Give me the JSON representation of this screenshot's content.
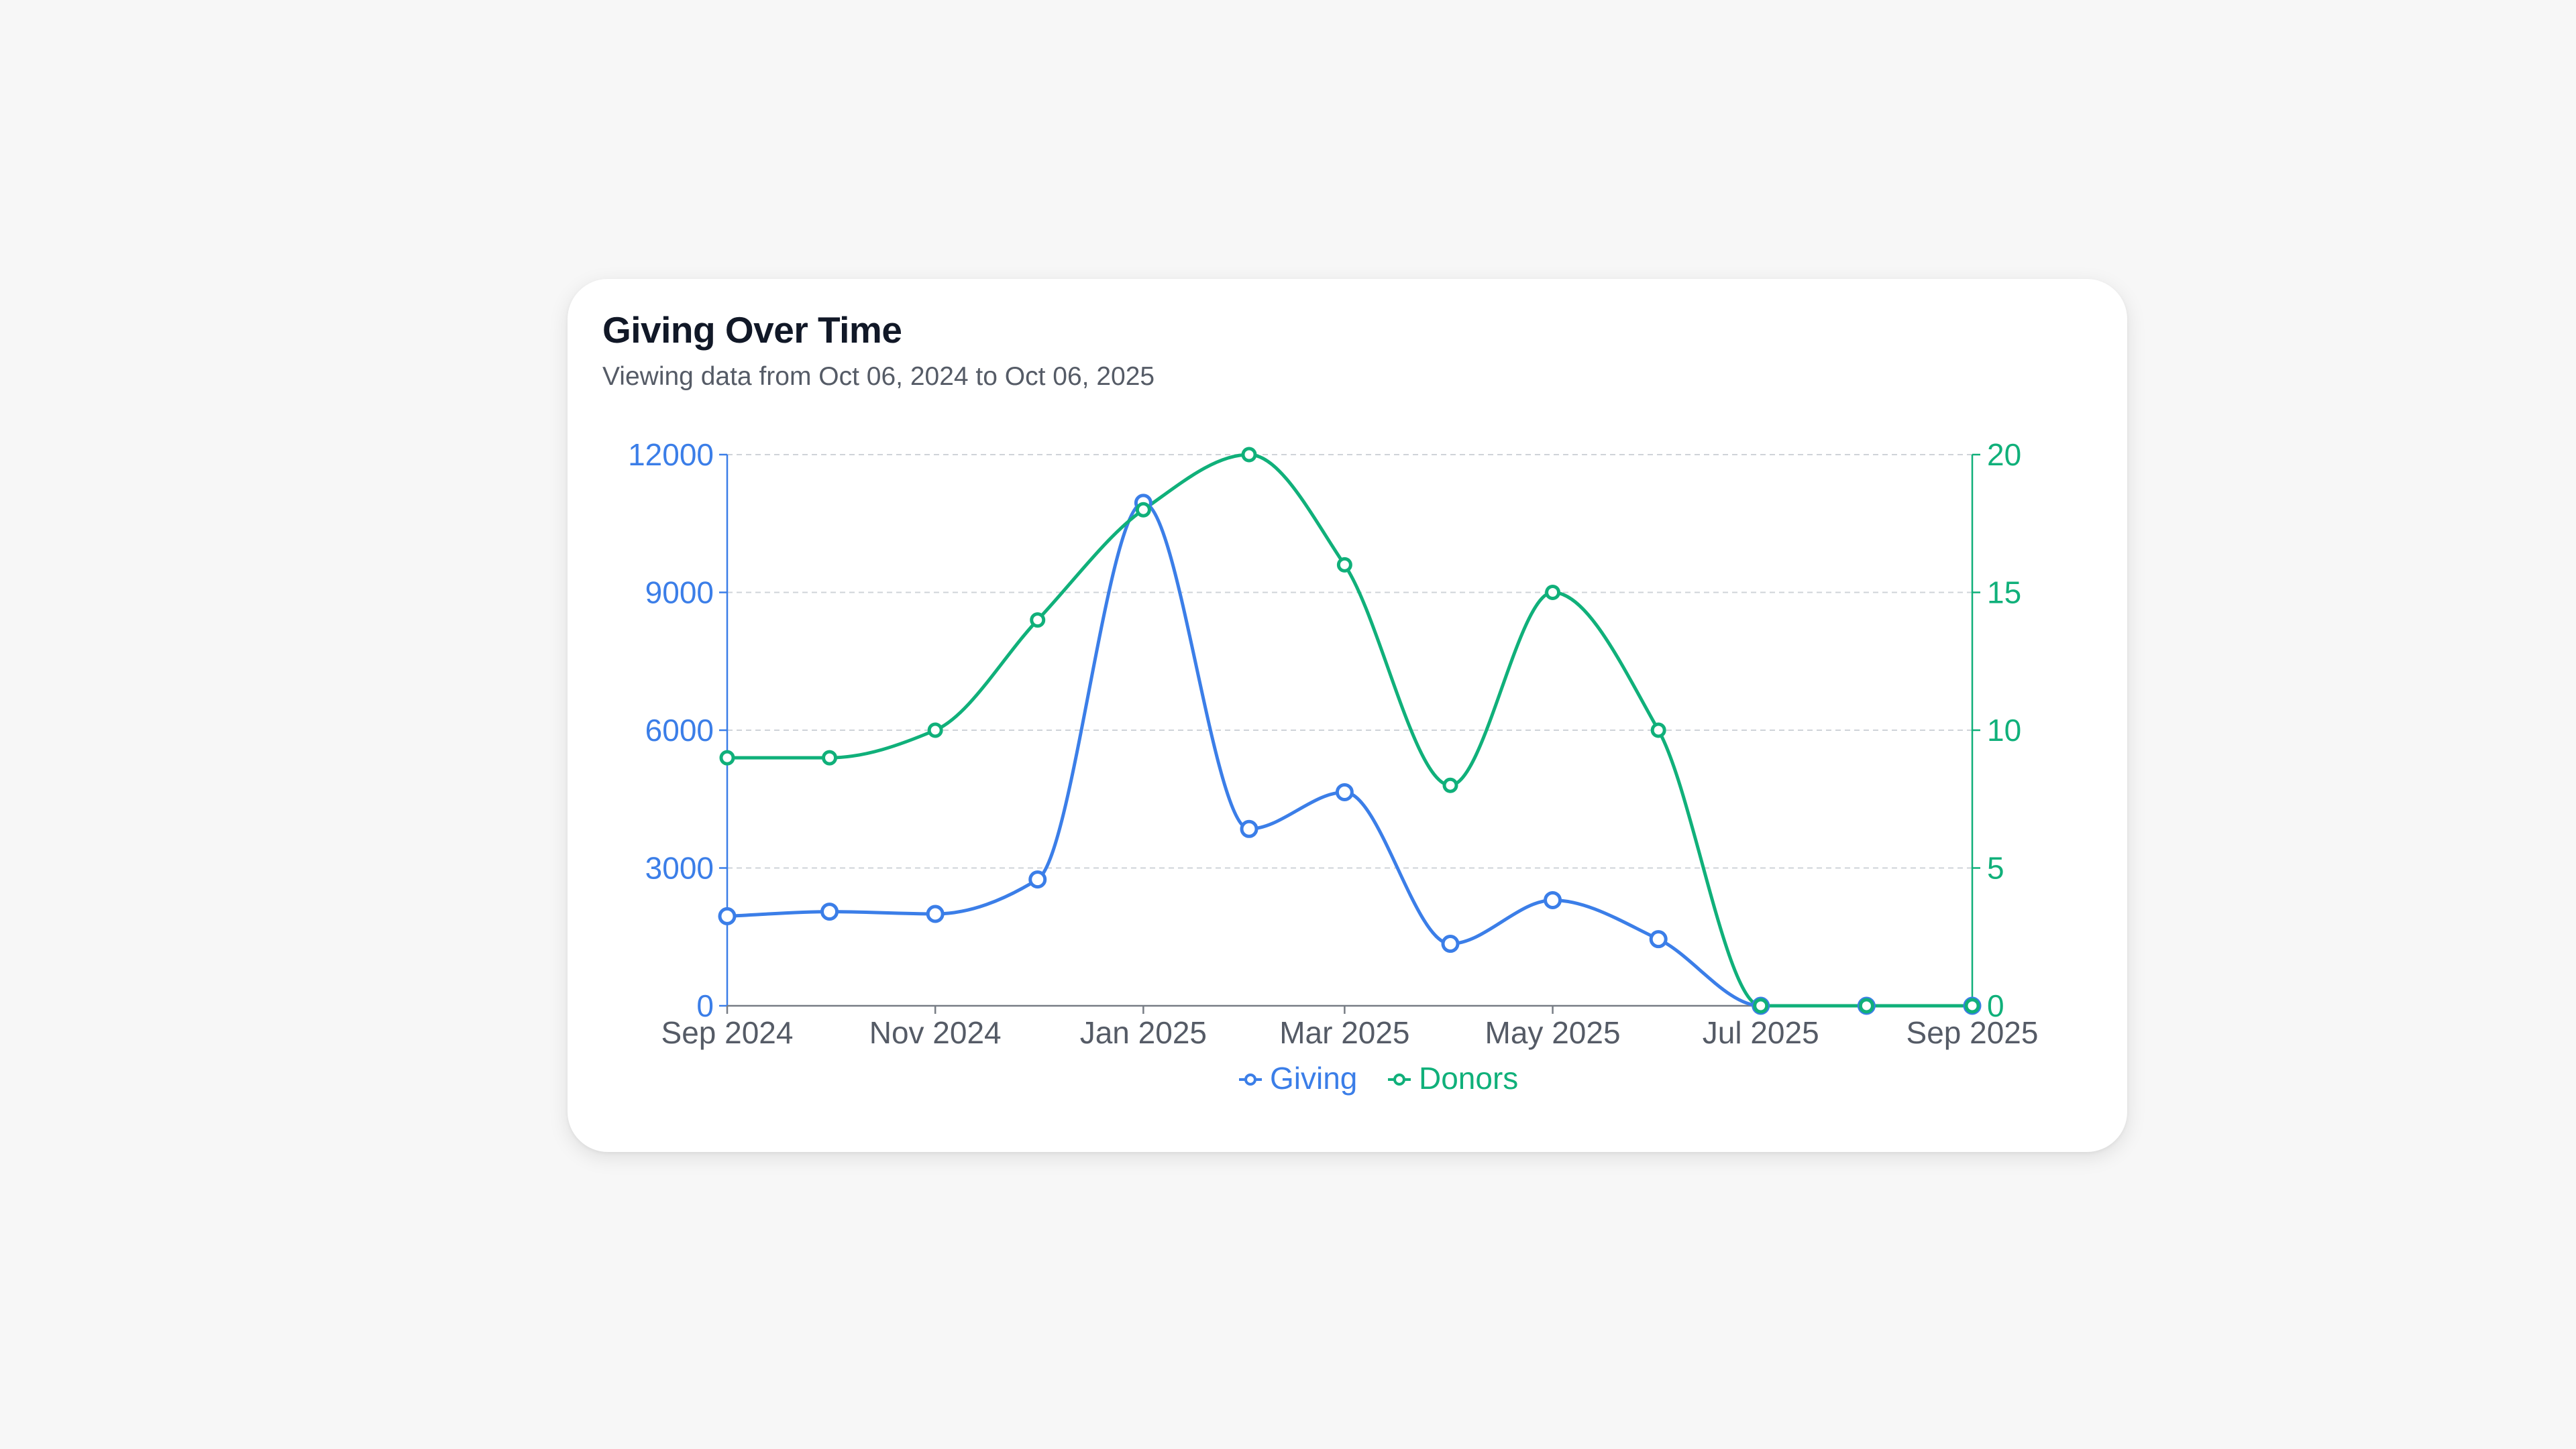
{
  "card": {
    "title": "Giving Over Time",
    "subtitle": "Viewing data from Oct 06, 2024 to Oct 06, 2025"
  },
  "colors": {
    "giving": "#3b7ee8",
    "donors": "#10b07a",
    "grid": "#cfd3d8",
    "axis_text": "#555b66",
    "background": "#f7f7f7",
    "card": "#ffffff"
  },
  "chart_data": {
    "type": "line",
    "title": "Giving Over Time",
    "x": [
      "2024-09-01",
      "2024-10-01",
      "2024-11-01",
      "2024-12-01",
      "2025-01-01",
      "2025-02-01",
      "2025-03-01",
      "2025-04-01",
      "2025-05-01",
      "2025-06-01",
      "2025-07-01",
      "2025-08-01",
      "2025-09-01"
    ],
    "x_tick_labels": [
      "Sep 2024",
      "Nov 2024",
      "Jan 2025",
      "Mar 2025",
      "May 2025",
      "Jul 2025",
      "Sep 2025"
    ],
    "x_tick_dates": [
      "2024-09-01",
      "2024-11-01",
      "2025-01-01",
      "2025-03-01",
      "2025-05-01",
      "2025-07-01",
      "2025-09-01"
    ],
    "x_range": [
      "2024-09-01",
      "2025-09-01"
    ],
    "series": [
      {
        "name": "Giving",
        "axis": "left",
        "values": [
          1950,
          2050,
          2000,
          2750,
          10950,
          3850,
          4650,
          1350,
          2300,
          1450,
          0,
          0,
          0
        ]
      },
      {
        "name": "Donors",
        "axis": "right",
        "values": [
          9,
          9,
          10,
          14,
          18,
          20,
          16,
          8,
          15,
          10,
          0,
          0,
          0
        ]
      }
    ],
    "y_left": {
      "ylim": [
        0,
        12000
      ],
      "ticks": [
        "0",
        "3000",
        "6000",
        "9000",
        "12000"
      ]
    },
    "y_right": {
      "ylim": [
        0,
        20
      ],
      "ticks": [
        "0",
        "5",
        "10",
        "15",
        "20"
      ]
    },
    "grid": true,
    "legend": "bottom-center"
  }
}
